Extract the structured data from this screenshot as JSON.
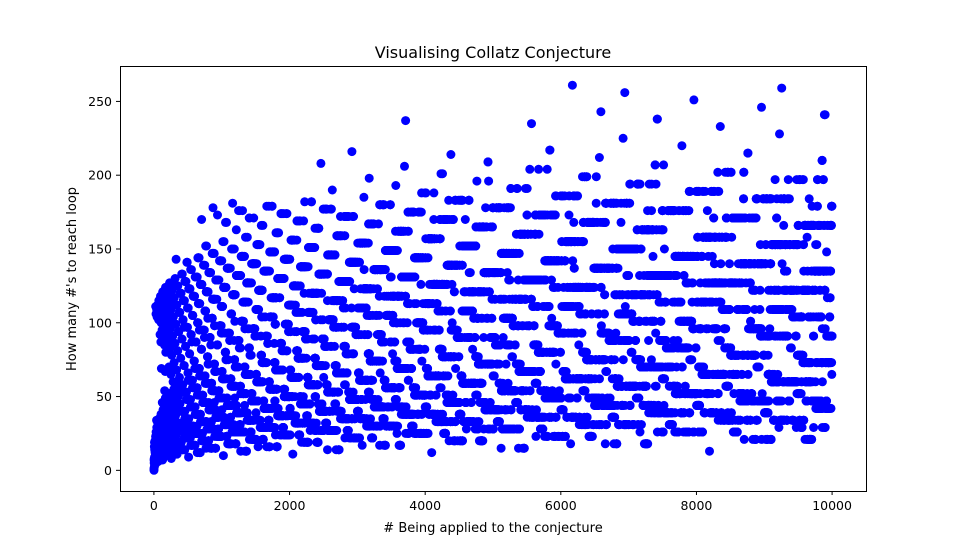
{
  "chart_data": {
    "type": "scatter",
    "title": "Visualising Collatz Conjecture",
    "xlabel": "# Being applied to the conjecture",
    "ylabel": "How many #'s to reach loop",
    "xlim": [
      -500,
      10500
    ],
    "ylim": [
      -14,
      274
    ],
    "xticks": [
      0,
      2000,
      4000,
      6000,
      8000,
      10000
    ],
    "yticks": [
      0,
      50,
      100,
      150,
      200,
      250
    ],
    "xtick_labels": [
      "0",
      "2000",
      "4000",
      "6000",
      "8000",
      "10000"
    ],
    "ytick_labels": [
      "0",
      "50",
      "100",
      "150",
      "200",
      "250"
    ],
    "grid": false,
    "legend": "none",
    "marker_color": "#0000ff",
    "series": [
      {
        "x_range": [
          1,
          9999
        ],
        "rule": "steps for n to reach 1 under n -> n/2 (even), 3n+1 (odd)"
      }
    ]
  }
}
